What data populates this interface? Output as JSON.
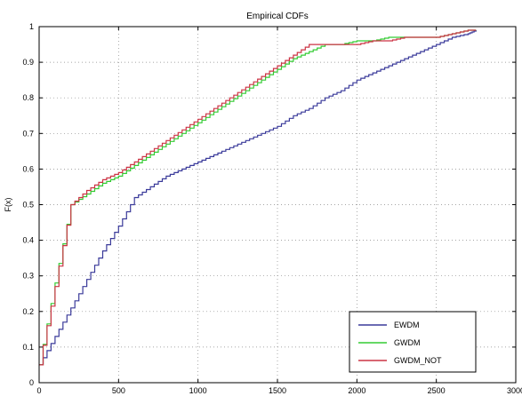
{
  "chart_data": {
    "type": "line",
    "title": "Empirical CDFs",
    "xlabel": "",
    "ylabel": "F(x)",
    "xlim": [
      0,
      3000
    ],
    "ylim": [
      0,
      1
    ],
    "x_ticks": [
      "0",
      "500",
      "1000",
      "1500",
      "2000",
      "2500",
      "3000"
    ],
    "y_ticks": [
      "0",
      "0.1",
      "0.2",
      "0.3",
      "0.4",
      "0.5",
      "0.6",
      "0.7",
      "0.8",
      "0.9",
      "1"
    ],
    "grid": true,
    "legend_position": "bottom-right",
    "step": true,
    "series": [
      {
        "name": "EWDM",
        "color": "#3a3a9a",
        "x": [
          0,
          100,
          200,
          300,
          400,
          500,
          600,
          700,
          800,
          900,
          1000,
          1100,
          1200,
          1300,
          1400,
          1500,
          1600,
          1700,
          1800,
          1900,
          2000,
          2100,
          2200,
          2300,
          2400,
          2500,
          2600,
          2700,
          2750
        ],
        "y": [
          0.05,
          0.13,
          0.21,
          0.29,
          0.37,
          0.44,
          0.52,
          0.55,
          0.58,
          0.6,
          0.62,
          0.64,
          0.66,
          0.68,
          0.7,
          0.72,
          0.75,
          0.77,
          0.8,
          0.82,
          0.85,
          0.87,
          0.89,
          0.91,
          0.93,
          0.95,
          0.97,
          0.98,
          0.99
        ]
      },
      {
        "name": "GWDM",
        "color": "#33cc33",
        "x": [
          0,
          100,
          200,
          300,
          400,
          500,
          600,
          700,
          800,
          900,
          1000,
          1100,
          1200,
          1300,
          1400,
          1500,
          1600,
          1700,
          1800,
          1900,
          2000,
          2100,
          2200,
          2300,
          2400,
          2500,
          2600,
          2700,
          2750
        ],
        "y": [
          0.05,
          0.28,
          0.5,
          0.53,
          0.56,
          0.58,
          0.61,
          0.64,
          0.67,
          0.7,
          0.73,
          0.76,
          0.79,
          0.82,
          0.85,
          0.88,
          0.91,
          0.93,
          0.95,
          0.95,
          0.96,
          0.96,
          0.97,
          0.97,
          0.97,
          0.97,
          0.98,
          0.99,
          0.99
        ]
      },
      {
        "name": "GWDM_NOT",
        "color": "#cc3344",
        "x": [
          0,
          100,
          200,
          300,
          400,
          500,
          600,
          700,
          800,
          900,
          1000,
          1100,
          1200,
          1300,
          1400,
          1500,
          1600,
          1700,
          1800,
          1900,
          2000,
          2100,
          2200,
          2300,
          2400,
          2500,
          2600,
          2700,
          2750
        ],
        "y": [
          0.05,
          0.27,
          0.5,
          0.54,
          0.57,
          0.59,
          0.62,
          0.65,
          0.68,
          0.71,
          0.74,
          0.77,
          0.8,
          0.83,
          0.86,
          0.89,
          0.92,
          0.95,
          0.95,
          0.95,
          0.95,
          0.96,
          0.96,
          0.97,
          0.97,
          0.97,
          0.98,
          0.99,
          0.99
        ]
      }
    ]
  }
}
